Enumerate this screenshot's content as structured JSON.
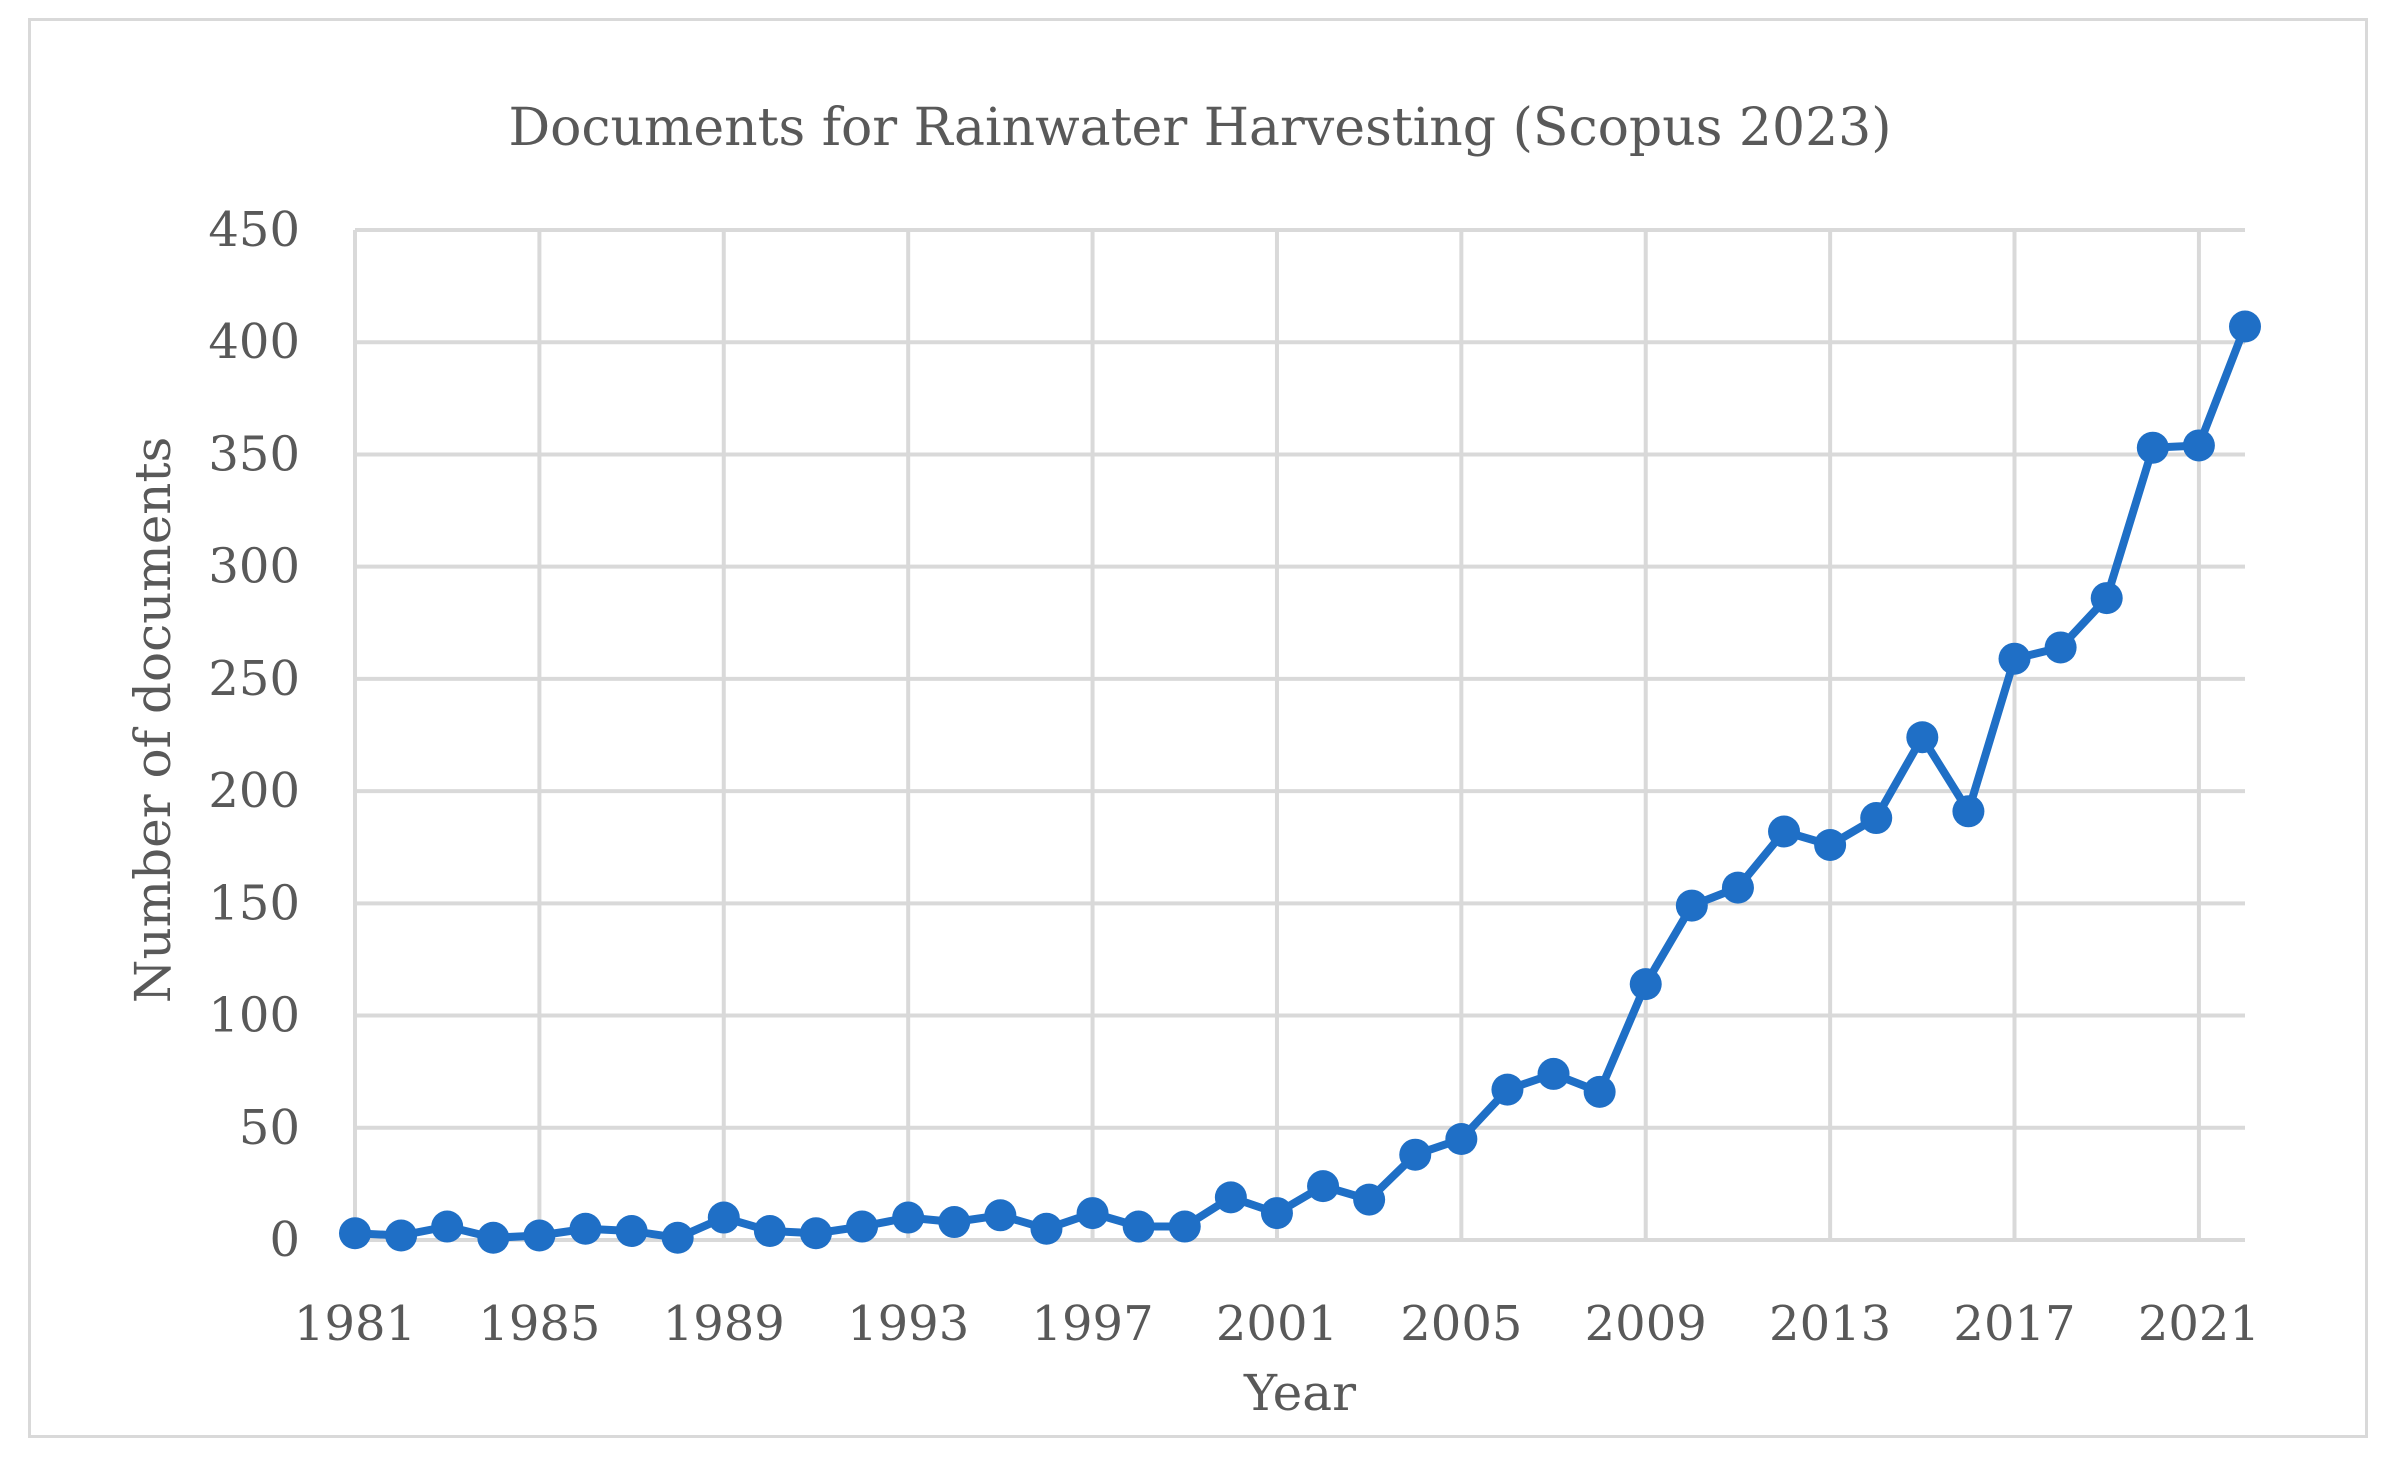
{
  "chart_data": {
    "type": "line",
    "title": "Documents for Rainwater Harvesting (Scopus 2023)",
    "xlabel": "Year",
    "ylabel": "Number of documents",
    "x_tick_labels": [
      "1981",
      "1985",
      "1989",
      "1993",
      "1997",
      "2001",
      "2005",
      "2009",
      "2013",
      "2017",
      "2021"
    ],
    "y_tick_labels": [
      "0",
      "50",
      "100",
      "150",
      "200",
      "250",
      "300",
      "350",
      "400",
      "450"
    ],
    "ylim": [
      0,
      450
    ],
    "xlim": [
      1981,
      2022
    ],
    "grid": true,
    "series_color": "#1f6fc6",
    "series": [
      {
        "x": [
          1981,
          1982,
          1983,
          1984,
          1985,
          1986,
          1987,
          1988,
          1989,
          1990,
          1991,
          1992,
          1993,
          1994,
          1995,
          1996,
          1997,
          1998,
          1999,
          2000,
          2001,
          2002,
          2003,
          2004,
          2005,
          2006,
          2007,
          2008,
          2009,
          2010,
          2011,
          2012,
          2013,
          2014,
          2015,
          2016,
          2017,
          2018,
          2019,
          2020,
          2021,
          2022
        ],
        "values": [
          3,
          2,
          6,
          1,
          2,
          5,
          4,
          1,
          10,
          4,
          3,
          6,
          10,
          8,
          11,
          5,
          12,
          6,
          6,
          19,
          12,
          24,
          18,
          38,
          45,
          67,
          74,
          66,
          114,
          149,
          157,
          182,
          176,
          188,
          224,
          191,
          259,
          264,
          286,
          353,
          354,
          407
        ]
      }
    ]
  }
}
